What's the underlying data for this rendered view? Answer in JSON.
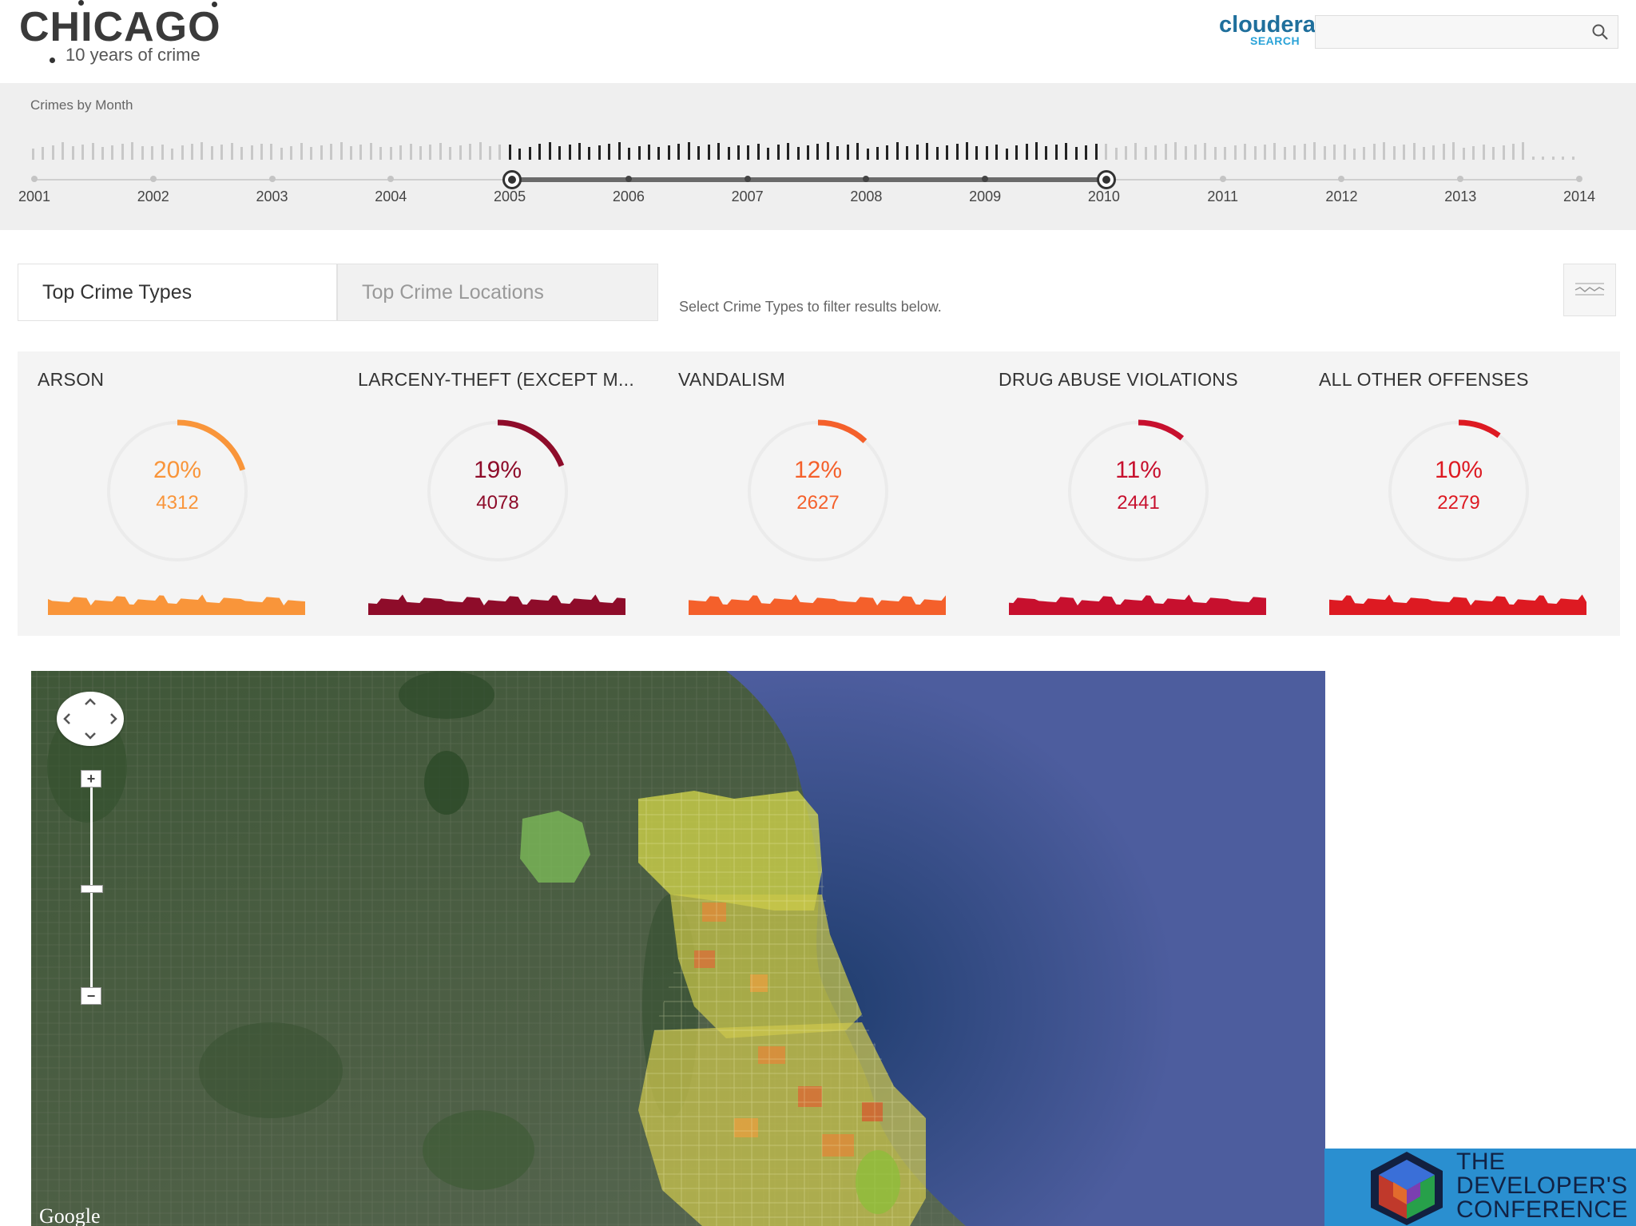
{
  "header": {
    "title": "CHICAGO",
    "subtitle": "10 years of crime",
    "brand": "cloudera",
    "brand_sub": "SEARCH",
    "search_placeholder": ""
  },
  "timeline": {
    "title": "Crimes by Month",
    "years": [
      "2001",
      "2002",
      "2003",
      "2004",
      "2005",
      "2006",
      "2007",
      "2008",
      "2009",
      "2010",
      "2011",
      "2012",
      "2013",
      "2014"
    ],
    "selected_start": "2005",
    "selected_end": "2010"
  },
  "tabs": {
    "active": "Top Crime Types",
    "inactive": "Top Crime Locations",
    "hint": "Select Crime Types to filter results below."
  },
  "cards": [
    {
      "title": "ARSON",
      "percent": "20%",
      "count": "4312",
      "fraction": 0.2,
      "color": "#f9953a"
    },
    {
      "title": "LARCENY-THEFT (EXCEPT M...",
      "percent": "19%",
      "count": "4078",
      "fraction": 0.19,
      "color": "#8e0c2a"
    },
    {
      "title": "VANDALISM",
      "percent": "12%",
      "count": "2627",
      "fraction": 0.12,
      "color": "#f4602b"
    },
    {
      "title": "DRUG ABUSE VIOLATIONS",
      "percent": "11%",
      "count": "2441",
      "fraction": 0.11,
      "color": "#c7102e"
    },
    {
      "title": "ALL OTHER OFFENSES",
      "percent": "10%",
      "count": "2279",
      "fraction": 0.1,
      "color": "#dd1a22"
    }
  ],
  "map": {
    "attribution": "Google"
  },
  "conference": {
    "line1": "THE",
    "line2": "DEVELOPER'S",
    "line3": "CONFERENCE"
  }
}
